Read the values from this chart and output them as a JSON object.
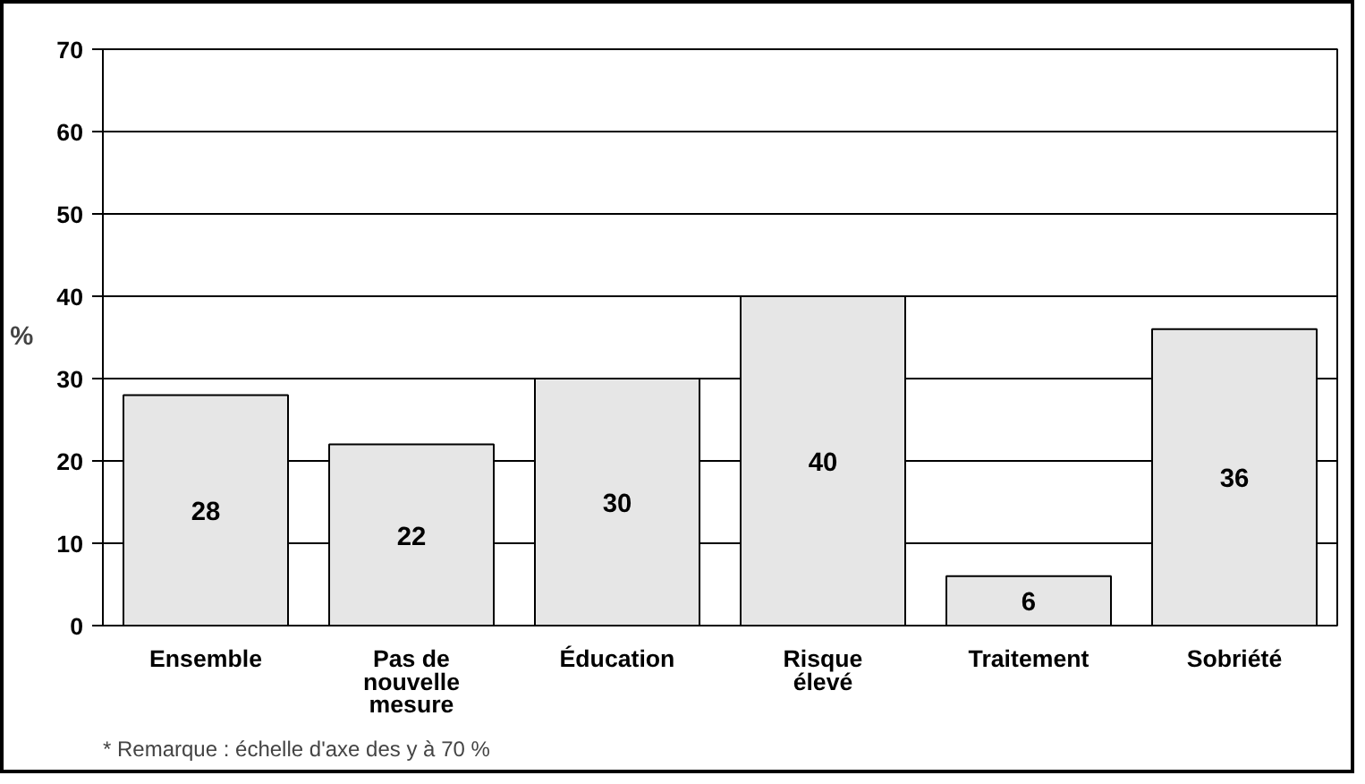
{
  "chart_data": {
    "type": "bar",
    "ylabel": "%",
    "categories": [
      "Ensemble",
      "Pas de\nnouvelle\nmesure",
      "Éducation",
      "Risque\nélevé",
      "Traitement",
      "Sobriété"
    ],
    "values": [
      28,
      22,
      30,
      40,
      6,
      36
    ],
    "color": "#e6e6e6",
    "data_labels": true,
    "ylim": [
      0,
      70
    ],
    "yticks": [
      0,
      10,
      20,
      30,
      40,
      50,
      60,
      70
    ],
    "grid": "y",
    "annotations": [
      "* Remarque : échelle d'axe des y à 70 %"
    ]
  }
}
